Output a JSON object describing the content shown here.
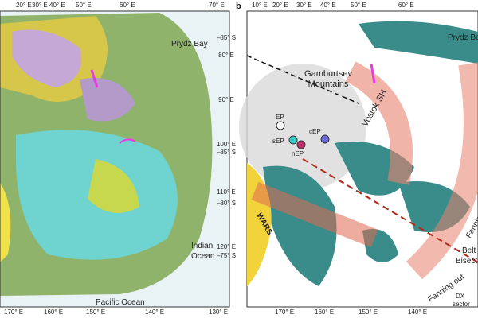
{
  "panel_a": {
    "top_longitudes": [
      "20° E",
      "30° E",
      "40° E",
      "50° E",
      "60° E",
      "70° E"
    ],
    "bottom_longitudes": [
      "170° E",
      "160° E",
      "150° E",
      "140° E",
      "130° E"
    ],
    "places": {
      "prydz_bay": "Prydz Bay",
      "indian_ocean": [
        "Indian",
        "Ocean"
      ],
      "pacific_ocean": "Pacific Ocean"
    }
  },
  "panel_b": {
    "label": "b",
    "top_longitudes": [
      "10° E",
      "20° E",
      "30° E",
      "40° E",
      "50° E",
      "60° E"
    ],
    "left_coordinates": [
      "–85° S",
      "80° E",
      "90° E",
      "–85° S",
      "100° E",
      "110° E",
      "–80° S",
      "120° E",
      "–75° S"
    ],
    "bottom_longitudes": [
      "170° E",
      "160° E",
      "150° E",
      "140° E"
    ],
    "places": {
      "prydz_bay": "Prydz Bay",
      "gamburtsev": [
        "Gamburtsev",
        "Mountains"
      ],
      "vostok": "Vostok SH",
      "wars": "WARS"
    },
    "poles": {
      "ep": "EP",
      "sep": "sEP",
      "cep": "cEP",
      "nep": "nEP"
    },
    "annotations": {
      "fanning_right": "Fanning out",
      "fanning_bottom": "Fanning out",
      "belt": "Belt",
      "bisector": "Bisector",
      "dx": [
        "DX",
        "sector"
      ]
    }
  }
}
